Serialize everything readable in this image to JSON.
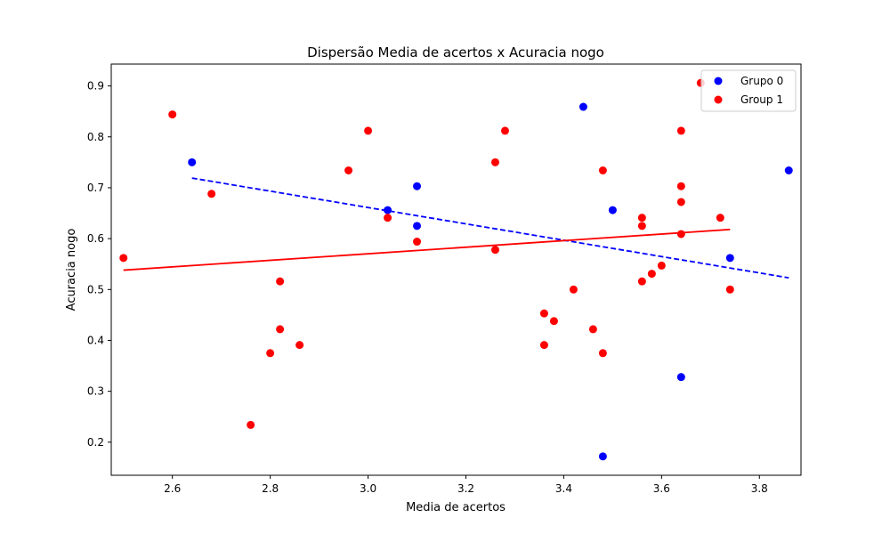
{
  "chart_data": {
    "type": "scatter",
    "title": "Dispersão Media de acertos x Acuracia nogo",
    "xlabel": "Media de acertos",
    "ylabel": "Acuracia nogo",
    "xlim": [
      2.475,
      3.885
    ],
    "ylim": [
      0.135,
      0.943
    ],
    "xticks": [
      2.6,
      2.8,
      3.0,
      3.2,
      3.4,
      3.6,
      3.8
    ],
    "yticks": [
      0.2,
      0.3,
      0.4,
      0.5,
      0.6,
      0.7,
      0.8,
      0.9
    ],
    "xtick_labels": [
      "2.6",
      "2.8",
      "3.0",
      "3.2",
      "3.4",
      "3.6",
      "3.8"
    ],
    "ytick_labels": [
      "0.2",
      "0.3",
      "0.4",
      "0.5",
      "0.6",
      "0.7",
      "0.8",
      "0.9"
    ],
    "grid": false,
    "legend_position": "top-right",
    "series": [
      {
        "name": "Grupo 0",
        "color": "#0000ff",
        "points": [
          [
            2.64,
            0.75
          ],
          [
            3.04,
            0.656
          ],
          [
            3.1,
            0.703
          ],
          [
            3.1,
            0.625
          ],
          [
            3.44,
            0.859
          ],
          [
            3.48,
            0.172
          ],
          [
            3.5,
            0.656
          ],
          [
            3.64,
            0.328
          ],
          [
            3.74,
            0.562
          ],
          [
            3.86,
            0.734
          ]
        ],
        "fit_line": {
          "x": [
            2.64,
            3.86
          ],
          "y": [
            0.719,
            0.523
          ],
          "style": "dashed"
        }
      },
      {
        "name": "Group 1",
        "color": "#ff0000",
        "points": [
          [
            2.5,
            0.562
          ],
          [
            2.6,
            0.844
          ],
          [
            2.68,
            0.688
          ],
          [
            2.76,
            0.234
          ],
          [
            2.8,
            0.375
          ],
          [
            2.82,
            0.516
          ],
          [
            2.82,
            0.422
          ],
          [
            2.86,
            0.391
          ],
          [
            2.96,
            0.734
          ],
          [
            3.0,
            0.812
          ],
          [
            3.04,
            0.641
          ],
          [
            3.1,
            0.594
          ],
          [
            3.26,
            0.75
          ],
          [
            3.26,
            0.578
          ],
          [
            3.28,
            0.812
          ],
          [
            3.36,
            0.453
          ],
          [
            3.36,
            0.391
          ],
          [
            3.38,
            0.438
          ],
          [
            3.42,
            0.5
          ],
          [
            3.46,
            0.422
          ],
          [
            3.48,
            0.734
          ],
          [
            3.48,
            0.375
          ],
          [
            3.56,
            0.641
          ],
          [
            3.56,
            0.625
          ],
          [
            3.56,
            0.516
          ],
          [
            3.58,
            0.531
          ],
          [
            3.6,
            0.547
          ],
          [
            3.64,
            0.812
          ],
          [
            3.64,
            0.703
          ],
          [
            3.64,
            0.672
          ],
          [
            3.64,
            0.609
          ],
          [
            3.68,
            0.906
          ],
          [
            3.72,
            0.641
          ],
          [
            3.74,
            0.5
          ]
        ],
        "fit_line": {
          "x": [
            2.5,
            3.74
          ],
          "y": [
            0.538,
            0.618
          ],
          "style": "solid"
        }
      }
    ]
  }
}
